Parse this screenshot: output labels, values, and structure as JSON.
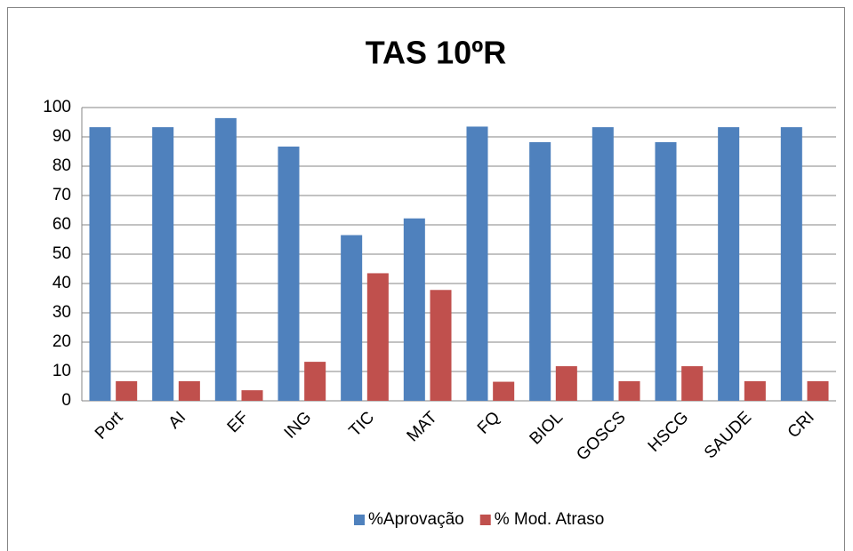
{
  "chart_data": {
    "type": "bar",
    "title": "TAS 10ºR",
    "categories": [
      "Port",
      "AI",
      "EF",
      "ING",
      "TIC",
      "MAT",
      "FQ",
      "BIOL",
      "GOSCS",
      "HSCG",
      "SAUDE",
      "CRI"
    ],
    "series": [
      {
        "name": "%Aprovação",
        "color": "#4f81bd",
        "values": [
          93.3,
          93.3,
          96.4,
          86.7,
          56.5,
          62.2,
          93.5,
          88.2,
          93.3,
          88.2,
          93.3,
          93.3
        ]
      },
      {
        "name": "% Mod. Atraso",
        "color": "#c0504d",
        "values": [
          6.7,
          6.7,
          3.6,
          13.3,
          43.5,
          37.8,
          6.5,
          11.8,
          6.7,
          11.8,
          6.7,
          6.7
        ]
      }
    ],
    "ylim": [
      0,
      100
    ],
    "yticks": [
      0,
      10,
      20,
      30,
      40,
      50,
      60,
      70,
      80,
      90,
      100
    ],
    "grid": true,
    "legend": "bottom"
  }
}
